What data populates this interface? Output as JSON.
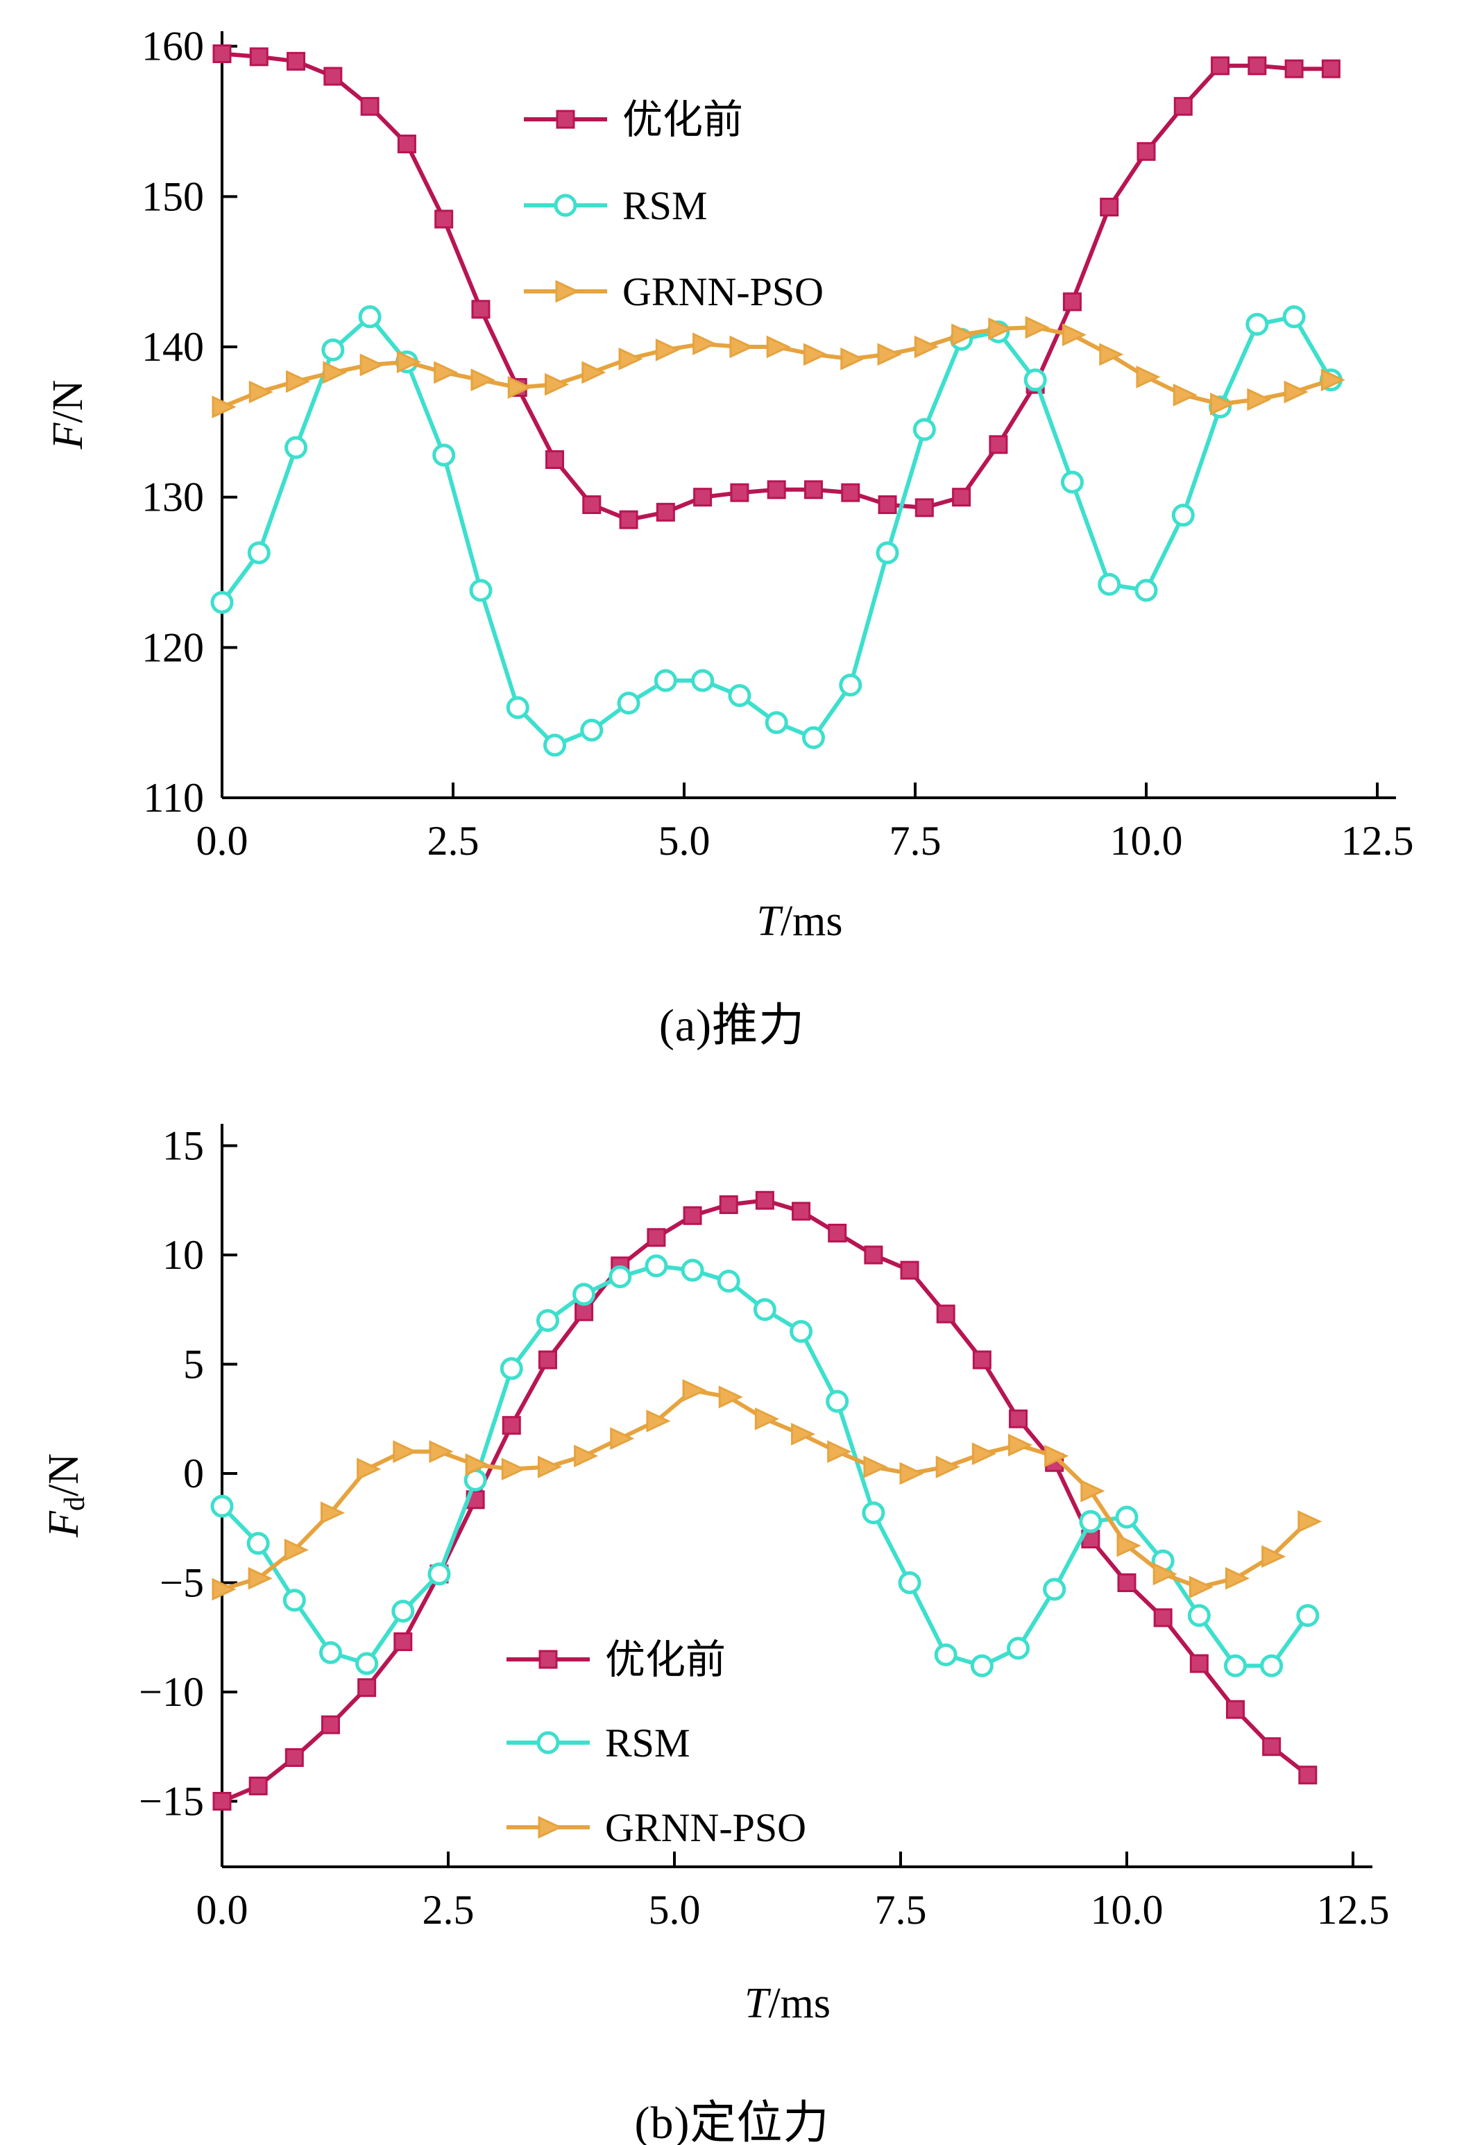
{
  "chart_data": [
    {
      "id": "a",
      "type": "line",
      "caption": "(a)推力",
      "xlabel": "T/ms",
      "ylabel": "F/N",
      "xlabel_parts": [
        {
          "text": "T",
          "italic": true
        },
        {
          "text": "/ms"
        }
      ],
      "ylabel_parts": [
        {
          "text": "F",
          "italic": true
        },
        {
          "text": "/N"
        }
      ],
      "xlim": [
        0,
        12.5
      ],
      "ylim": [
        110,
        160
      ],
      "grid": false,
      "legend_position": "inside-top-left",
      "xticks": {
        "values": [
          0,
          2.5,
          5,
          7.5,
          10,
          12.5
        ],
        "labels": [
          "0.0",
          "2.5",
          "5.0",
          "7.5",
          "10.0",
          "12.5"
        ]
      },
      "yticks": {
        "values": [
          110,
          120,
          130,
          140,
          150,
          160
        ],
        "labels": [
          "110",
          "120",
          "130",
          "140",
          "150",
          "160"
        ]
      },
      "x": [
        0,
        0.4,
        0.8,
        1.2,
        1.6,
        2,
        2.4,
        2.8,
        3.2,
        3.6,
        4,
        4.4,
        4.8,
        5.2,
        5.6,
        6,
        6.4,
        6.8,
        7.2,
        7.6,
        8,
        8.4,
        8.8,
        9.2,
        9.6,
        10,
        10.4,
        10.8,
        11.2,
        11.6,
        12
      ],
      "series": [
        {
          "key": "pre_opt",
          "name": "优化前",
          "marker": "square",
          "color": "#b81552",
          "marker_fill": "#cc3a72",
          "values": [
            159.5,
            159.3,
            159,
            158,
            156,
            153.5,
            148.5,
            142.5,
            137.3,
            132.5,
            129.5,
            128.5,
            129,
            130,
            130.3,
            130.5,
            130.5,
            130.3,
            129.5,
            129.3,
            130,
            133.5,
            137.5,
            143,
            149.3,
            153,
            156,
            158.7,
            158.7,
            158.5,
            158.5
          ]
        },
        {
          "key": "rsm",
          "name": "RSM",
          "marker": "circle",
          "color": "#3ddfcd",
          "marker_fill": "#ffffff",
          "values": [
            123,
            126.3,
            133.3,
            139.8,
            142,
            139,
            132.8,
            123.8,
            116,
            113.5,
            114.5,
            116.3,
            117.8,
            117.8,
            116.8,
            115,
            114,
            117.5,
            126.3,
            134.5,
            140.5,
            141,
            137.8,
            131,
            124.2,
            123.8,
            128.8,
            136,
            141.5,
            142,
            137.8
          ]
        },
        {
          "key": "grnn_pso",
          "name": "GRNN-PSO",
          "marker": "triangle-right",
          "color": "#e6a33e",
          "marker_fill": "#efb054",
          "values": [
            136,
            137,
            137.7,
            138.3,
            138.8,
            139,
            138.3,
            137.8,
            137.3,
            137.5,
            138.3,
            139.2,
            139.8,
            140.2,
            140,
            140,
            139.5,
            139.2,
            139.5,
            140,
            140.8,
            141.2,
            141.3,
            140.8,
            139.5,
            138,
            136.8,
            136.2,
            136.5,
            137,
            137.8
          ]
        }
      ]
    },
    {
      "id": "b",
      "type": "line",
      "caption": "(b)定位力",
      "xlabel": "T/ms",
      "ylabel": "Fd/N",
      "xlabel_parts": [
        {
          "text": "T",
          "italic": true
        },
        {
          "text": "/ms"
        }
      ],
      "ylabel_parts": [
        {
          "text": "F",
          "italic": true
        },
        {
          "text": "d",
          "sub": true
        },
        {
          "text": "/N"
        }
      ],
      "xlim": [
        0,
        12.5
      ],
      "ylim": [
        -15,
        15
      ],
      "grid": false,
      "legend_position": "inside-bottom-left",
      "xticks": {
        "values": [
          0,
          2.5,
          5,
          7.5,
          10,
          12.5
        ],
        "labels": [
          "0.0",
          "2.5",
          "5.0",
          "7.5",
          "10.0",
          "12.5"
        ]
      },
      "yticks": {
        "values": [
          15,
          10,
          5,
          0,
          -5,
          -10,
          -15
        ],
        "labels": [
          "15",
          "10",
          "5",
          "0",
          "−5",
          "−10",
          "−15"
        ]
      },
      "x": [
        0,
        0.4,
        0.8,
        1.2,
        1.6,
        2,
        2.4,
        2.8,
        3.2,
        3.6,
        4,
        4.4,
        4.8,
        5.2,
        5.6,
        6,
        6.4,
        6.8,
        7.2,
        7.6,
        8,
        8.4,
        8.8,
        9.2,
        9.6,
        10,
        10.4,
        10.8,
        11.2,
        11.6,
        12
      ],
      "series": [
        {
          "key": "pre_opt",
          "name": "优化前",
          "marker": "square",
          "color": "#b81552",
          "marker_fill": "#cc3a72",
          "values": [
            -15,
            -14.3,
            -13,
            -11.5,
            -9.8,
            -7.7,
            -4.6,
            -1.2,
            2.2,
            5.2,
            7.4,
            9.5,
            10.8,
            11.8,
            12.3,
            12.5,
            12,
            11,
            10,
            9.3,
            7.3,
            5.2,
            2.5,
            0.5,
            -3,
            -5,
            -6.6,
            -8.7,
            -10.8,
            -12.5,
            -13.8
          ]
        },
        {
          "key": "rsm",
          "name": "RSM",
          "marker": "circle",
          "color": "#3ddfcd",
          "marker_fill": "#ffffff",
          "values": [
            -1.5,
            -3.2,
            -5.8,
            -8.2,
            -8.7,
            -6.3,
            -4.6,
            -0.3,
            4.8,
            7,
            8.2,
            9,
            9.5,
            9.3,
            8.8,
            7.5,
            6.5,
            3.3,
            -1.8,
            -5,
            -8.3,
            -8.8,
            -8,
            -5.3,
            -2.2,
            -2,
            -4,
            -6.5,
            -8.8,
            -8.8,
            -6.5
          ]
        },
        {
          "key": "grnn_pso",
          "name": "GRNN-PSO",
          "marker": "triangle-right",
          "color": "#e6a33e",
          "marker_fill": "#efb054",
          "values": [
            -5.3,
            -4.8,
            -3.5,
            -1.8,
            0.2,
            1,
            1,
            0.4,
            0.2,
            0.3,
            0.8,
            1.6,
            2.4,
            3.8,
            3.5,
            2.5,
            1.8,
            1,
            0.3,
            0,
            0.3,
            0.9,
            1.3,
            0.8,
            -0.8,
            -3.3,
            -4.6,
            -5.2,
            -4.8,
            -3.8,
            -2.2
          ]
        }
      ]
    }
  ]
}
